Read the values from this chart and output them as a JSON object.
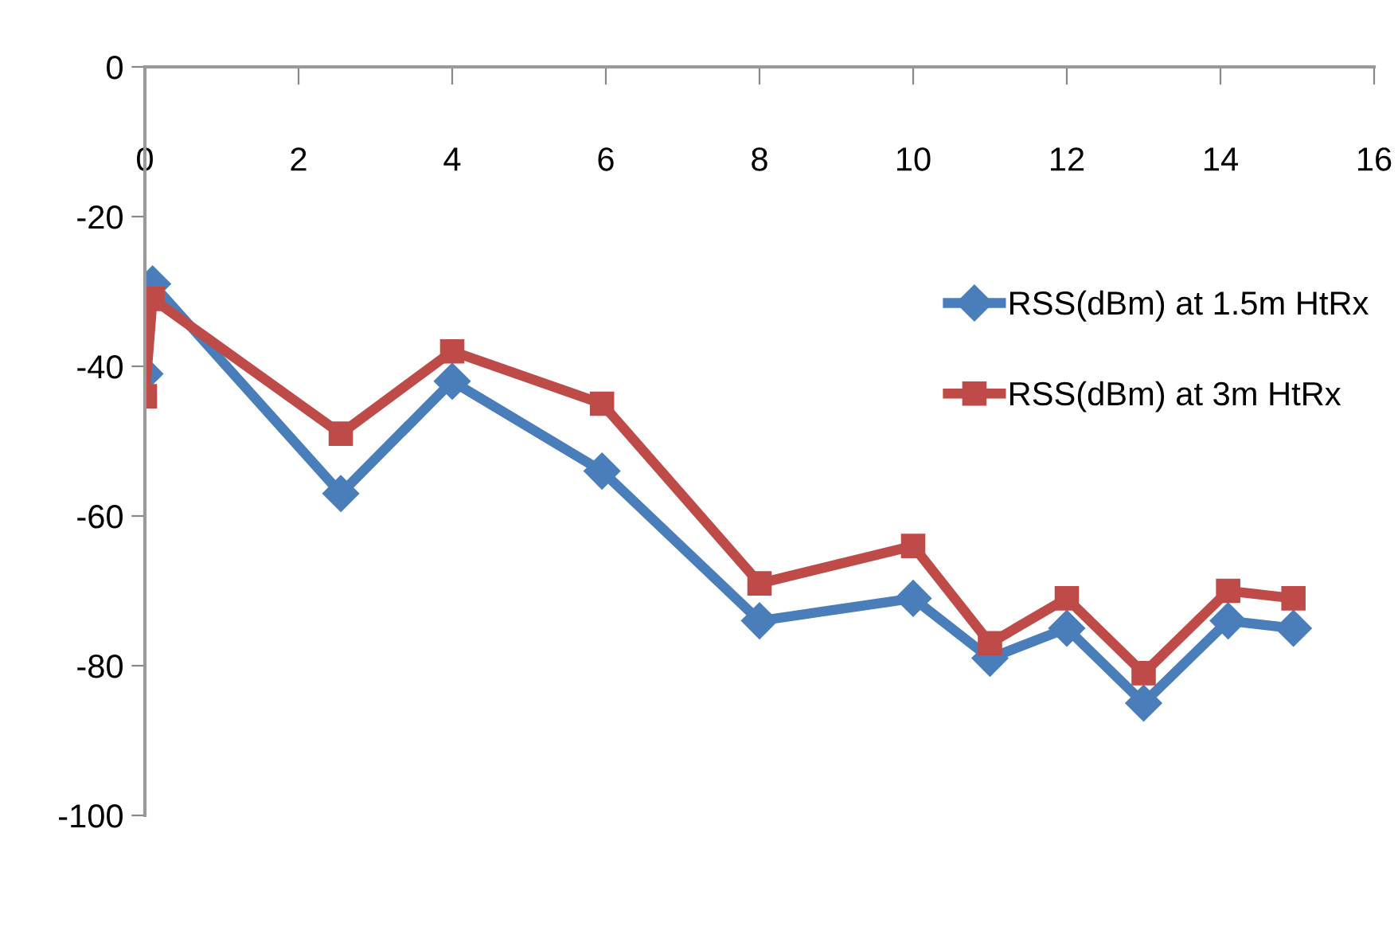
{
  "chart_data": {
    "type": "line",
    "xlim": [
      0,
      16
    ],
    "xticks": [
      0,
      2,
      4,
      6,
      8,
      10,
      12,
      14,
      16
    ],
    "ylim": [
      -100,
      0
    ],
    "yticks": [
      -100,
      -80,
      -60,
      -40,
      -20,
      0
    ],
    "grid": false,
    "legend": "right",
    "series": [
      {
        "name": "RSS(dBm) at 1.5m HtRx",
        "color": "#4a7ebb",
        "marker": "diamond",
        "x": [
          0,
          0.1,
          2.55,
          4,
          5.95,
          8,
          10,
          11,
          12,
          13,
          14.1,
          14.95
        ],
        "values": [
          -41,
          -29,
          -57,
          -42,
          -54,
          -74,
          -71,
          -79,
          -75,
          -85,
          -74,
          -75
        ]
      },
      {
        "name": "RSS(dBm) at 3m HtRx",
        "color": "#be4b48",
        "marker": "square",
        "x": [
          0,
          0.1,
          2.55,
          4,
          5.95,
          8,
          10,
          11,
          12,
          13,
          14.1,
          14.95
        ],
        "values": [
          -44,
          -31,
          -49,
          -38,
          -45,
          -69,
          -64,
          -77,
          -71,
          -81,
          -70,
          -71
        ]
      }
    ]
  }
}
